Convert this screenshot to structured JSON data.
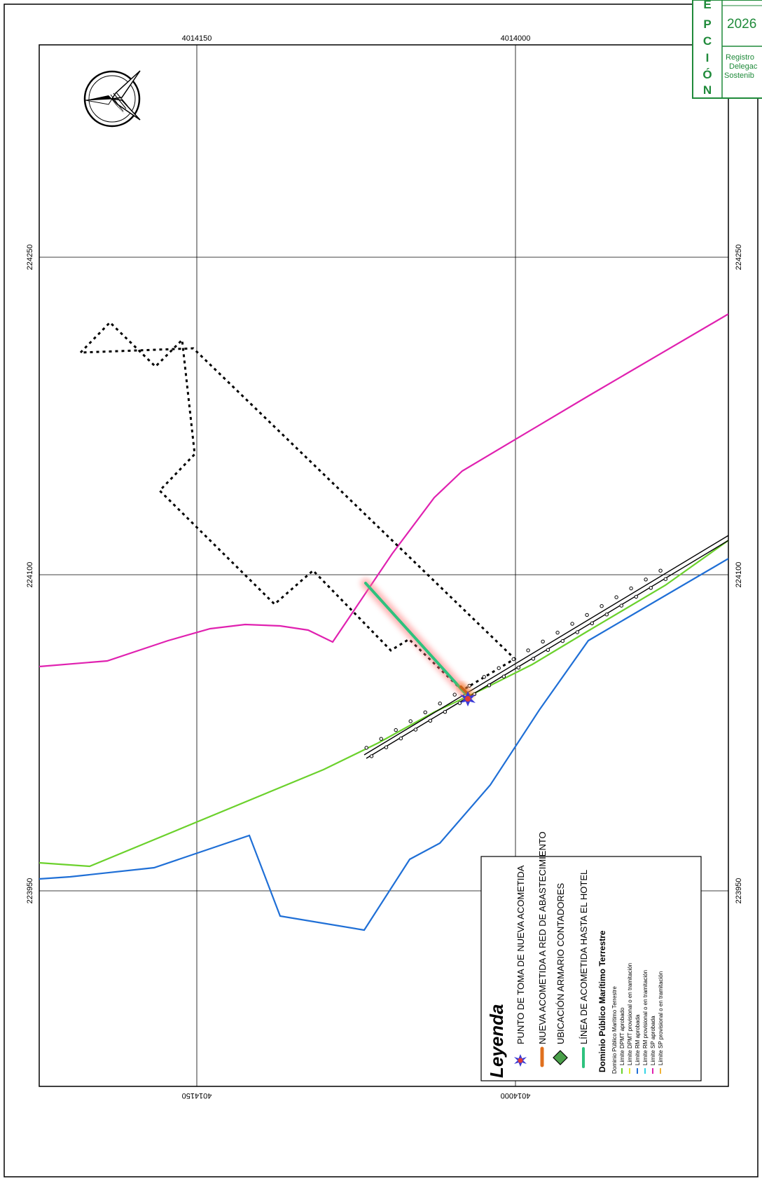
{
  "stamp": {
    "letters": [
      "E",
      "P",
      "C",
      "I",
      "Ó",
      "N"
    ],
    "year": "2026",
    "lines": [
      "Registro",
      "Delegac",
      "Sostenib"
    ]
  },
  "coordinates": {
    "top": [
      "4014150",
      "4014000"
    ],
    "bottom": [
      "4014150",
      "4014000"
    ],
    "left": [
      "224250",
      "224100",
      "223950"
    ],
    "right": [
      "224250",
      "224100",
      "223950"
    ]
  },
  "legend": {
    "title": "Leyenda",
    "items": [
      "PUNTO DE TOMA DE NUEVA ACOMETIDA",
      "NUEVA ACOMETIDA A RED DE ABASTECIMIENTO",
      "UBICACIÓN ARMARIO CONTADORES",
      "LÍNEA DE ACOMETIDA HASTA EL HOTEL"
    ],
    "section_title": "Dominio Público Marítimo Terrestre",
    "sub_items": [
      {
        "label": "Dominio Público Marítimo Terrestre",
        "color": ""
      },
      {
        "label": "Límite DPMT aprobado",
        "color": "#6bd12c"
      },
      {
        "label": "Límite DPMT provisional o en tramitación",
        "color": "#e6e632"
      },
      {
        "label": "Límite RM aprobada",
        "color": "#1f6fd6"
      },
      {
        "label": "Límite RM provisional o en tramitación",
        "color": "#35d5e6"
      },
      {
        "label": "Límite SP aprobada",
        "color": "#e021b0"
      },
      {
        "label": "Límite SP provisional o en tramitación",
        "color": "#f0b43a"
      }
    ]
  },
  "colors": {
    "dpmt": "#6bd12c",
    "rm": "#1f6fd6",
    "sp": "#e021b0",
    "acometida": "#2ec27e",
    "stamp": "#1f8a3a"
  }
}
